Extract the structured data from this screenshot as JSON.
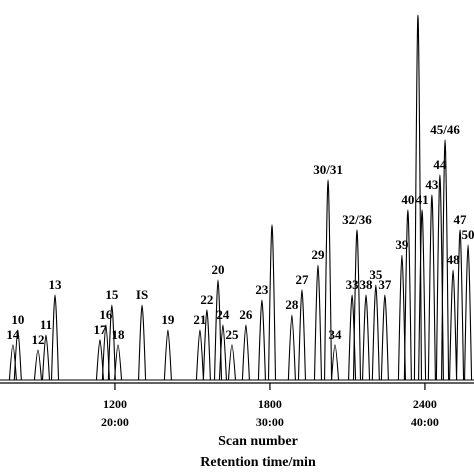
{
  "chart_data": {
    "type": "peaks",
    "categories": [
      "14",
      "10",
      "12",
      "11",
      "13",
      "17",
      "16",
      "15",
      "18",
      "IS",
      "19",
      "21",
      "22",
      "20",
      "24",
      "25",
      "26",
      "23",
      null,
      "28",
      "27",
      "29",
      "30/31",
      "34",
      "33",
      "32/36",
      "38",
      "35",
      "37",
      "39",
      "40",
      null,
      "41",
      "43",
      "44",
      "45/46",
      "48",
      "47",
      "50"
    ],
    "x": [
      805,
      824,
      902,
      933,
      968,
      1142,
      1165,
      1188,
      1212,
      1305,
      1405,
      1529,
      1556,
      1599,
      1618,
      1653,
      1707,
      1769,
      1808,
      1885,
      1924,
      1986,
      2025,
      2052,
      2118,
      2137,
      2172,
      2210,
      2245,
      2311,
      2334,
      2373,
      2389,
      2427,
      2458,
      2478,
      2509,
      2536,
      2567
    ],
    "values": [
      9.6,
      13.7,
      8.2,
      12.3,
      23.3,
      11,
      15.1,
      20.5,
      9.6,
      20.5,
      13.7,
      13.7,
      19.2,
      27.4,
      15.1,
      9.6,
      15.1,
      21.9,
      42.5,
      17.8,
      24.7,
      31.5,
      54.8,
      9.6,
      23.3,
      41.1,
      23.3,
      26,
      23.3,
      34.2,
      46.6,
      100,
      46.6,
      50.7,
      56.2,
      65.8,
      30.1,
      41.1,
      37
    ],
    "color": "#000000",
    "xlim": [
      755,
      2590
    ],
    "ylim": [
      0,
      100
    ],
    "xticks": [
      1200,
      1800,
      2400
    ],
    "xticks2": [
      {
        "value": 1200,
        "label": "20:00"
      },
      {
        "value": 1800,
        "label": "30:00"
      },
      {
        "value": 2400,
        "label": "40:00"
      }
    ],
    "xlabel": "Scan number",
    "xlabel2": "Retention time/min"
  }
}
